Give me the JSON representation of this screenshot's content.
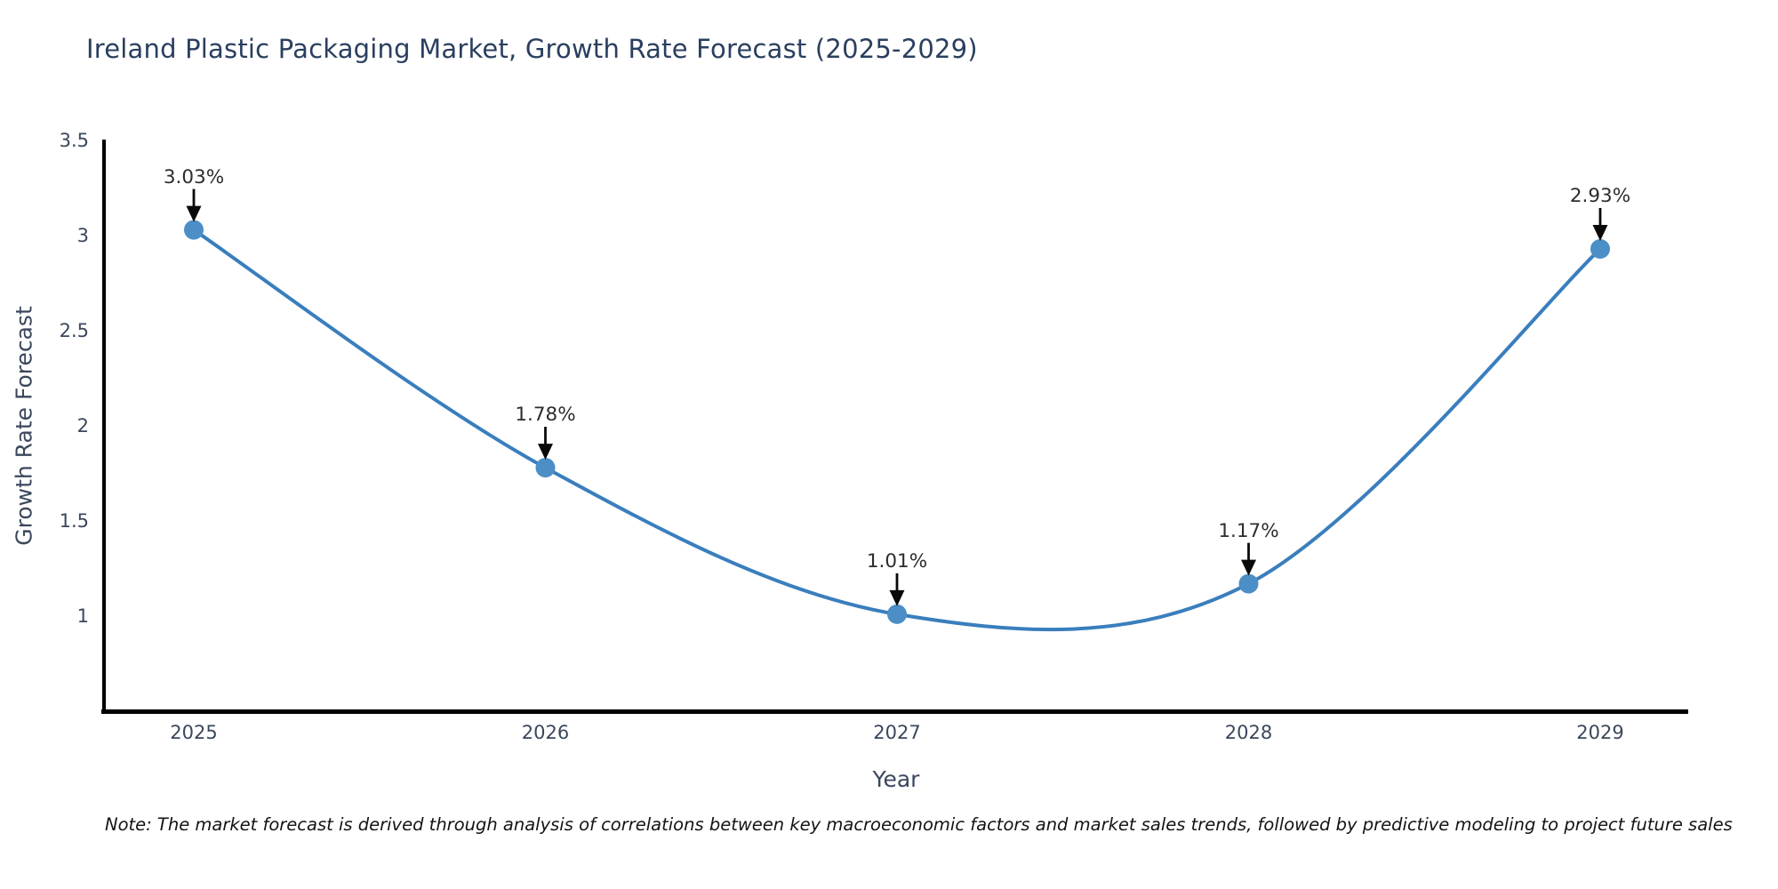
{
  "page": {
    "note": "Note: The market forecast is derived through analysis of correlations between key macroeconomic factors and market sales trends, followed by predictive modeling to project future sales"
  },
  "chart_data": {
    "type": "line",
    "title": "Ireland Plastic Packaging Market, Growth Rate Forecast (2025-2029)",
    "xlabel": "Year",
    "ylabel": "Growth Rate Forecast",
    "x": [
      "2025",
      "2026",
      "2027",
      "2028",
      "2029"
    ],
    "series": [
      {
        "name": "Growth Rate Forecast",
        "values": [
          3.03,
          1.78,
          1.01,
          1.17,
          2.93
        ],
        "point_labels": [
          "3.03%",
          "1.78%",
          "1.01%",
          "1.17%",
          "2.93%"
        ]
      }
    ],
    "ylim": [
      0.5,
      3.5
    ],
    "y_ticks": [
      3.5,
      3,
      2.5,
      2,
      1.5,
      1
    ],
    "line_shape": "spline",
    "markers": true,
    "grid": false,
    "legend_position": "none",
    "annotation_style": "black-down-arrow",
    "colors": {
      "line": "#3a7ebd",
      "marker": "#4b8fc6",
      "axis_spine": "#000000",
      "arrow": "#0a0a0a",
      "title_text": "#2a3f5f",
      "tick_text": "#3b475c",
      "annotation_text": "#2d2d2d",
      "note_text": "#141414",
      "background": "#ffffff"
    }
  }
}
